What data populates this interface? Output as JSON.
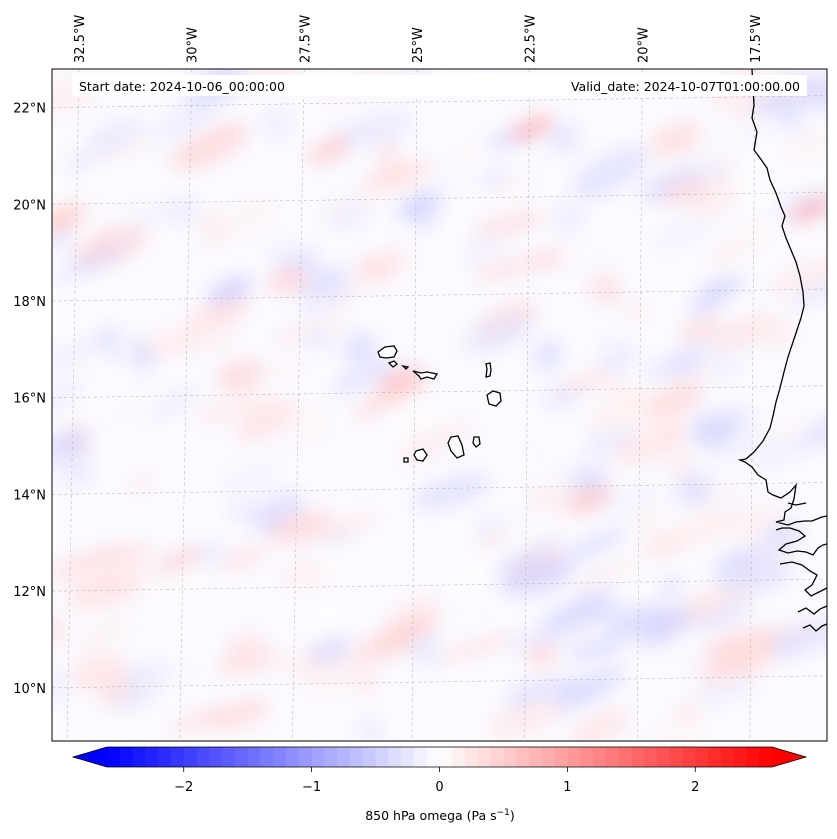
{
  "header": {
    "start_date": "Start date: 2024-10-06_00:00:00",
    "valid_date": "Valid_date: 2024-10-07T01:00:00.00"
  },
  "map": {
    "lon_range": [
      -33.1,
      -15.9
    ],
    "lat_range": [
      8.9,
      22.8
    ],
    "lon_ticks": [
      {
        "value": -32.5,
        "label": "32.5°W"
      },
      {
        "value": -30.0,
        "label": "30°W"
      },
      {
        "value": -27.5,
        "label": "27.5°W"
      },
      {
        "value": -25.0,
        "label": "25°W"
      },
      {
        "value": -22.5,
        "label": "22.5°W"
      },
      {
        "value": -20.0,
        "label": "20°W"
      },
      {
        "value": -17.5,
        "label": "17.5°W"
      }
    ],
    "lat_ticks": [
      {
        "value": 10,
        "label": "10°N"
      },
      {
        "value": 12,
        "label": "12°N"
      },
      {
        "value": 14,
        "label": "14°N"
      },
      {
        "value": 16,
        "label": "16°N"
      },
      {
        "value": 18,
        "label": "18°N"
      },
      {
        "value": 20,
        "label": "20°N"
      },
      {
        "value": 22,
        "label": "22°N"
      }
    ],
    "gridlines": true,
    "field": "850 hPa omega"
  },
  "colorbar": {
    "min": -2.6,
    "max": 2.6,
    "ticks": [
      {
        "value": -2,
        "label": "−2"
      },
      {
        "value": -1,
        "label": "−1"
      },
      {
        "value": 0,
        "label": "0"
      },
      {
        "value": 1,
        "label": "1"
      },
      {
        "value": 2,
        "label": "2"
      }
    ],
    "label_main": "850 hPa omega (Pa s",
    "label_sup": "−1",
    "label_end": ")",
    "colormap": "bwr",
    "extend": "both",
    "colors": {
      "low": "#0000ff",
      "mid": "#ffffff",
      "high": "#ff0000"
    }
  }
}
